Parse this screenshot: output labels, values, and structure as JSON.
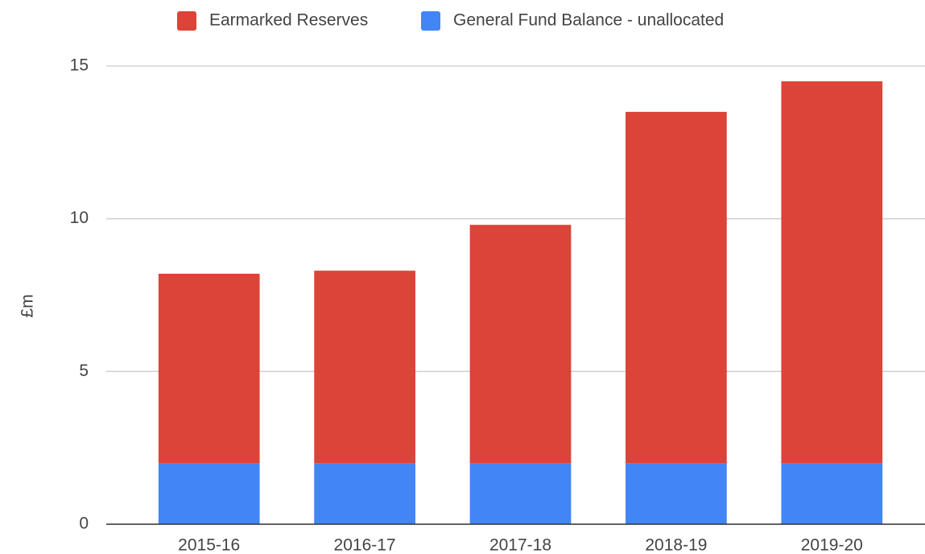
{
  "chart_data": {
    "type": "stacked_bar",
    "y_label": "£m",
    "categories": [
      "2015-16",
      "2016-17",
      "2017-18",
      "2018-19",
      "2019-20"
    ],
    "series": [
      {
        "name": "Earmarked Reserves",
        "color": "#db4437",
        "values": [
          6.2,
          6.3,
          7.8,
          11.5,
          12.5
        ]
      },
      {
        "name": "General Fund Balance - unallocated",
        "color": "#4285f4",
        "values": [
          2,
          2,
          2,
          2,
          2
        ]
      }
    ],
    "ylim": [
      0,
      15
    ],
    "yticks": [
      0,
      5,
      10,
      15
    ],
    "grid": true,
    "legend": "top"
  }
}
